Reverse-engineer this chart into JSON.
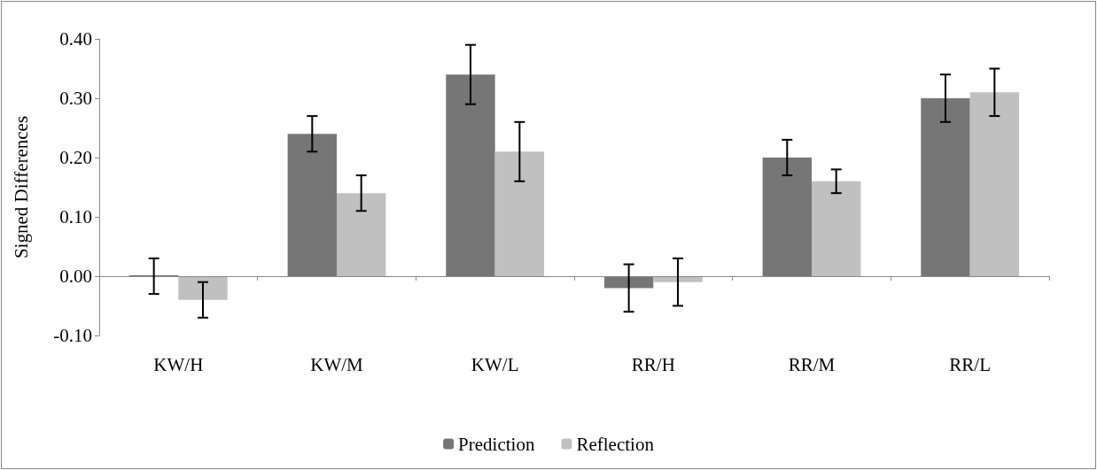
{
  "chart_data": {
    "type": "bar",
    "ylabel": "Signed Differences",
    "categories": [
      "KW/H",
      "KW/M",
      "KW/L",
      "RR/H",
      "RR/M",
      "RR/L"
    ],
    "series": [
      {
        "name": "Prediction",
        "color": "#767676",
        "values": [
          0.0,
          0.24,
          0.34,
          -0.02,
          0.2,
          0.3
        ],
        "errors": [
          0.03,
          0.03,
          0.05,
          0.04,
          0.03,
          0.04
        ]
      },
      {
        "name": "Reflection",
        "color": "#c0c0c0",
        "values": [
          -0.04,
          0.14,
          0.21,
          -0.01,
          0.16,
          0.31
        ],
        "errors": [
          0.03,
          0.03,
          0.05,
          0.04,
          0.02,
          0.04
        ]
      }
    ],
    "ylim": [
      -0.1,
      0.4
    ],
    "yticks": [
      {
        "value": -0.1,
        "label": "-0.10"
      },
      {
        "value": 0,
        "label": "0.00"
      },
      {
        "value": 0.1,
        "label": "0.10"
      },
      {
        "value": 0.2,
        "label": "0.20"
      },
      {
        "value": 0.3,
        "label": "0.30"
      },
      {
        "value": 0.4,
        "label": "0.40"
      }
    ],
    "ref_lines": [
      {
        "axis": "y",
        "value": 0,
        "color": "#888888"
      }
    ],
    "grid": false,
    "legend": "bottom"
  }
}
